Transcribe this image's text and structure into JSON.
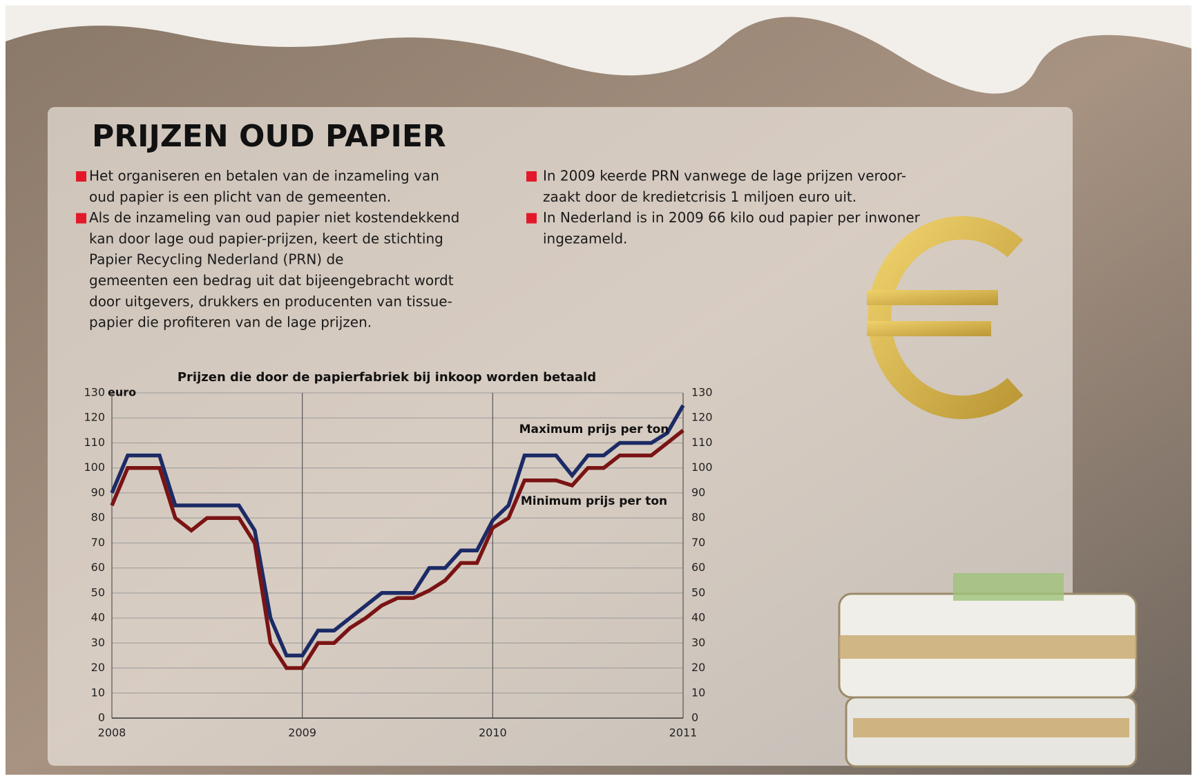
{
  "title": "PRIJZEN OUD PAPIER",
  "bullets": [
    {
      "lines": [
        "Het organiseren en betalen van de inzameling van",
        "oud papier is een plicht van de gemeenten."
      ]
    },
    {
      "lines": [
        "Als de inzameling van oud papier niet kostendekkend",
        "kan door lage oud papier-prijzen, keert de stichting",
        "Papier Recycling Nederland (PRN) de",
        "gemeenten een bedrag uit dat bijeengebracht wordt",
        "door uitgevers, drukkers en producenten van tissue-",
        "papier die profiteren van de lage prijzen."
      ]
    },
    {
      "lines": [
        "In 2009 keerde PRN vanwege de lage prijzen veroor-",
        "zaakt door de kredietcrisis 1 miljoen euro uit."
      ]
    },
    {
      "lines": [
        "In Nederland is in 2009 66 kilo oud papier per inwoner",
        "ingezameld."
      ]
    }
  ],
  "chart_data": {
    "type": "line",
    "title": "Prijzen die door de papierfabriek bij inkoop worden betaald",
    "y_unit": "euro",
    "x": [
      2008,
      2008.083,
      2008.167,
      2008.25,
      2008.333,
      2008.417,
      2008.5,
      2008.583,
      2008.667,
      2008.75,
      2008.833,
      2008.917,
      2009,
      2009.083,
      2009.167,
      2009.25,
      2009.333,
      2009.417,
      2009.5,
      2009.583,
      2009.667,
      2009.75,
      2009.833,
      2009.917,
      2010,
      2010.083,
      2010.167,
      2010.25,
      2010.333,
      2010.417,
      2010.5,
      2010.583,
      2010.667,
      2010.75,
      2010.833,
      2010.917,
      2011
    ],
    "series": [
      {
        "name": "Maximum prijs per ton",
        "color": "#1c2b66",
        "values": [
          90,
          105,
          105,
          105,
          85,
          85,
          85,
          85,
          85,
          75,
          40,
          25,
          25,
          35,
          35,
          40,
          45,
          50,
          50,
          50,
          60,
          60,
          67,
          67,
          79,
          85,
          105,
          105,
          105,
          97,
          105,
          105,
          110,
          110,
          110,
          114,
          125
        ]
      },
      {
        "name": "Minimum prijs per ton",
        "color": "#7a1414",
        "values": [
          85,
          100,
          100,
          100,
          80,
          75,
          80,
          80,
          80,
          70,
          30,
          20,
          20,
          30,
          30,
          36,
          40,
          45,
          48,
          48,
          51,
          55,
          62,
          62,
          76,
          80,
          95,
          95,
          95,
          93,
          100,
          100,
          105,
          105,
          105,
          110,
          115
        ]
      }
    ],
    "xlim": [
      2008,
      2011
    ],
    "xticks": [
      2008,
      2009,
      2010,
      2011
    ],
    "ylim": [
      0,
      130
    ],
    "yticks": [
      0,
      10,
      20,
      30,
      40,
      50,
      60,
      70,
      80,
      90,
      100,
      110,
      120,
      130
    ],
    "grid": true,
    "right_axis": true
  }
}
